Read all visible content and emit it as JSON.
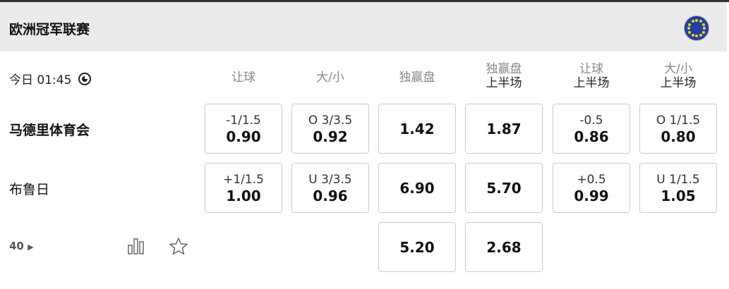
{
  "league": {
    "title": "欧洲冠军联赛",
    "flag_icon": "eu-flag-icon"
  },
  "match": {
    "time": "今日 01:45",
    "more_count": "40"
  },
  "columns": [
    {
      "label": "让球",
      "sub": ""
    },
    {
      "label": "大/小",
      "sub": ""
    },
    {
      "label": "独赢盘",
      "sub": ""
    },
    {
      "label": "独赢盘",
      "sub": "上半场"
    },
    {
      "label": "让球",
      "sub": "上半场"
    },
    {
      "label": "大/小",
      "sub": "上半场"
    }
  ],
  "rows": [
    {
      "team": "马德里体育会",
      "cells": [
        {
          "line": "-1/1.5",
          "odd": "0.90"
        },
        {
          "line": "O 3/3.5",
          "odd": "0.92"
        },
        {
          "line": "",
          "odd": "1.42"
        },
        {
          "line": "",
          "odd": "1.87"
        },
        {
          "line": "-0.5",
          "odd": "0.86"
        },
        {
          "line": "O 1/1.5",
          "odd": "0.80"
        }
      ]
    },
    {
      "team": "布鲁日",
      "cells": [
        {
          "line": "+1/1.5",
          "odd": "1.00"
        },
        {
          "line": "U 3/3.5",
          "odd": "0.96"
        },
        {
          "line": "",
          "odd": "6.90"
        },
        {
          "line": "",
          "odd": "5.70"
        },
        {
          "line": "+0.5",
          "odd": "0.99"
        },
        {
          "line": "U 1/1.5",
          "odd": "1.05"
        }
      ]
    },
    {
      "team": "",
      "cells": [
        null,
        null,
        {
          "line": "",
          "odd": "5.20"
        },
        {
          "line": "",
          "odd": "2.68"
        },
        null,
        null
      ]
    }
  ]
}
